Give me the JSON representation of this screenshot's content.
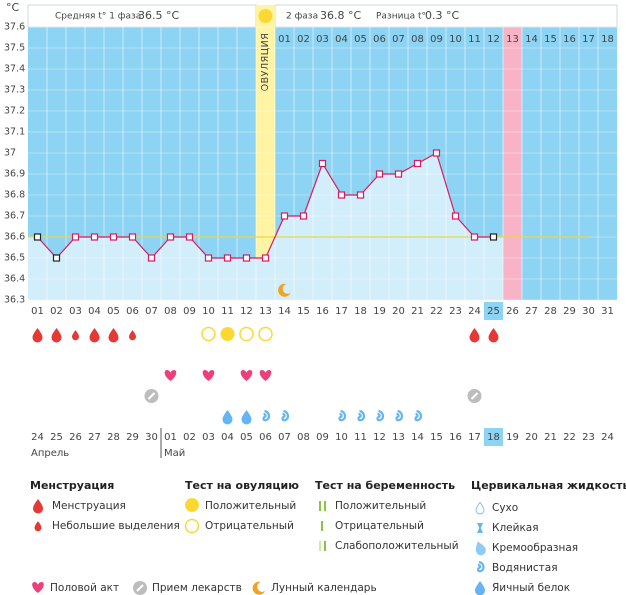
{
  "chart_data": {
    "type": "line",
    "y_unit": "°C",
    "header": {
      "phase1_label": "Средняя t° 1 фаза",
      "phase1_value": "36.5 °C",
      "phase2_label": "2 фаза",
      "phase2_value": "36.8 °C",
      "diff_label": "Разница t°",
      "diff_value": "0.3 °C"
    },
    "ovulation_label": "ОВУЛЯЦИЯ",
    "ovulation_day": 13,
    "today_day": 25,
    "marked_day": 26,
    "categories": [
      "01",
      "02",
      "03",
      "04",
      "05",
      "06",
      "07",
      "08",
      "09",
      "10",
      "11",
      "12",
      "13",
      "14",
      "15",
      "16",
      "17",
      "18",
      "19",
      "20",
      "21",
      "22",
      "23",
      "24",
      "25",
      "26",
      "27",
      "28",
      "29",
      "30",
      "31"
    ],
    "series": [
      {
        "name": "Температура",
        "color": "#d81b60",
        "values": [
          36.6,
          36.5,
          36.6,
          36.6,
          36.6,
          36.6,
          36.5,
          36.6,
          36.6,
          36.5,
          36.5,
          36.5,
          36.5,
          36.7,
          36.7,
          36.95,
          36.8,
          36.8,
          36.9,
          36.9,
          36.95,
          37.0,
          36.7,
          36.6,
          36.6,
          null,
          null,
          null,
          null,
          null,
          null
        ],
        "marker_colors": [
          "#222",
          "#222",
          "#d81b60",
          "#d81b60",
          "#d81b60",
          "#d81b60",
          "#d81b60",
          "#d81b60",
          "#d81b60",
          "#d81b60",
          "#d81b60",
          "#d81b60",
          "#d81b60",
          "#d81b60",
          "#d81b60",
          "#d81b60",
          "#d81b60",
          "#d81b60",
          "#d81b60",
          "#d81b60",
          "#d81b60",
          "#d81b60",
          "#d81b60",
          "#d81b60",
          "#222",
          null,
          null,
          null,
          null,
          null,
          null
        ]
      }
    ],
    "coverline": 36.6,
    "ylim": [
      36.3,
      37.6
    ],
    "yticks": [
      36.3,
      36.4,
      36.5,
      36.6,
      36.7,
      36.8,
      36.9,
      37,
      37.1,
      37.2,
      37.3,
      37.4,
      37.5,
      37.6
    ],
    "phase2_start_day": 14,
    "phase2_day_labels": [
      "01",
      "02",
      "03",
      "04",
      "05",
      "06",
      "07",
      "08",
      "09",
      "10",
      "11",
      "12",
      "13",
      "14",
      "15",
      "16",
      "17",
      "18"
    ],
    "menstruation_days": [
      1,
      2,
      4,
      5,
      24,
      25
    ],
    "spotting_days": [
      3,
      6
    ],
    "ovulation_test_positive_days": [
      11
    ],
    "ovulation_test_negative_days": [
      10,
      12,
      13
    ],
    "intercourse_days": [
      8,
      10,
      12,
      13
    ],
    "medication_days": [
      7,
      24
    ],
    "egg_white_days": [
      11,
      12
    ],
    "watery_days": [
      13,
      14,
      17,
      18,
      19,
      20,
      21
    ],
    "moon_days": [
      14
    ],
    "dates": [
      "24",
      "25",
      "26",
      "27",
      "28",
      "29",
      "30",
      "01",
      "02",
      "03",
      "04",
      "05",
      "06",
      "07",
      "08",
      "09",
      "10",
      "11",
      "12",
      "13",
      "14",
      "15",
      "16",
      "17",
      "18",
      "19",
      "20",
      "21",
      "22",
      "23",
      "24"
    ],
    "date_colors": [
      "#444",
      "#e53935",
      "#e53935",
      "#444",
      "#444",
      "#444",
      "#444",
      "#444",
      "#e53935",
      "#e53935",
      "#444",
      "#444",
      "#444",
      "#444",
      "#444",
      "#e53935",
      "#e53935",
      "#444",
      "#444",
      "#444",
      "#444",
      "#444",
      "#e53935",
      "#e53935",
      "#444",
      "#444",
      "#444",
      "#444",
      "#444",
      "#e53935",
      "#e53935"
    ],
    "months": [
      "Апрель",
      "Май"
    ],
    "month_start_days": [
      1,
      8
    ]
  },
  "legend": {
    "menstruation": {
      "title": "Менструация",
      "items": [
        "Менструация",
        "Небольшие выделения"
      ]
    },
    "ovulation_test": {
      "title": "Тест на овуляцию",
      "items": [
        "Положительный",
        "Отрицательный"
      ]
    },
    "pregnancy_test": {
      "title": "Тест на беременность",
      "items": [
        "Положительный",
        "Отрицательный",
        "Слабоположительный"
      ]
    },
    "cervical_fluid": {
      "title": "Цервикальная жидкость",
      "items": [
        "Сухо",
        "Клейкая",
        "Кремообразная",
        "Водянистая",
        "Яичный белок"
      ]
    },
    "other": [
      "Половой акт",
      "Прием лекарств",
      "Лунный календарь"
    ]
  }
}
